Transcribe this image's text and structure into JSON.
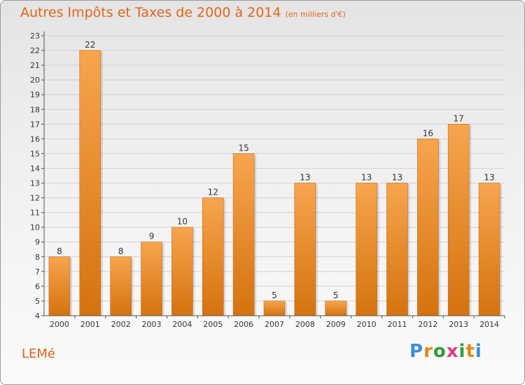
{
  "header": {
    "title": "Autres Impôts et Taxes de 2000 à 2014",
    "subtitle": "(en milliers d'€)"
  },
  "footer": {
    "commune": "LEMé",
    "logo": {
      "letters": [
        "P",
        "r",
        "o",
        "x",
        "i",
        "t",
        "i"
      ],
      "colors": [
        "#3a8fd6",
        "#e08a1a",
        "#2e9b3a",
        "#e03c8a",
        "#2e9b3a",
        "#e08a1a",
        "#3a8fd6"
      ]
    }
  },
  "chart_data": {
    "type": "bar",
    "categories": [
      "2000",
      "2001",
      "2002",
      "2003",
      "2004",
      "2005",
      "2006",
      "2007",
      "2008",
      "2009",
      "2010",
      "2011",
      "2012",
      "2013",
      "2014"
    ],
    "values": [
      8,
      22,
      8,
      9,
      10,
      12,
      15,
      5,
      13,
      5,
      13,
      13,
      16,
      17,
      13
    ],
    "ylim": [
      4,
      23
    ],
    "yticks": [
      4,
      5,
      6,
      7,
      8,
      9,
      10,
      11,
      12,
      13,
      14,
      15,
      16,
      17,
      18,
      19,
      20,
      21,
      22,
      23
    ],
    "grid": true,
    "data_labels": true,
    "colors": {
      "bar_light": "#f7a54e",
      "bar_dark": "#d5720f",
      "grid": "#d2d2d2",
      "axis": "#555555",
      "text": "#333333"
    }
  }
}
